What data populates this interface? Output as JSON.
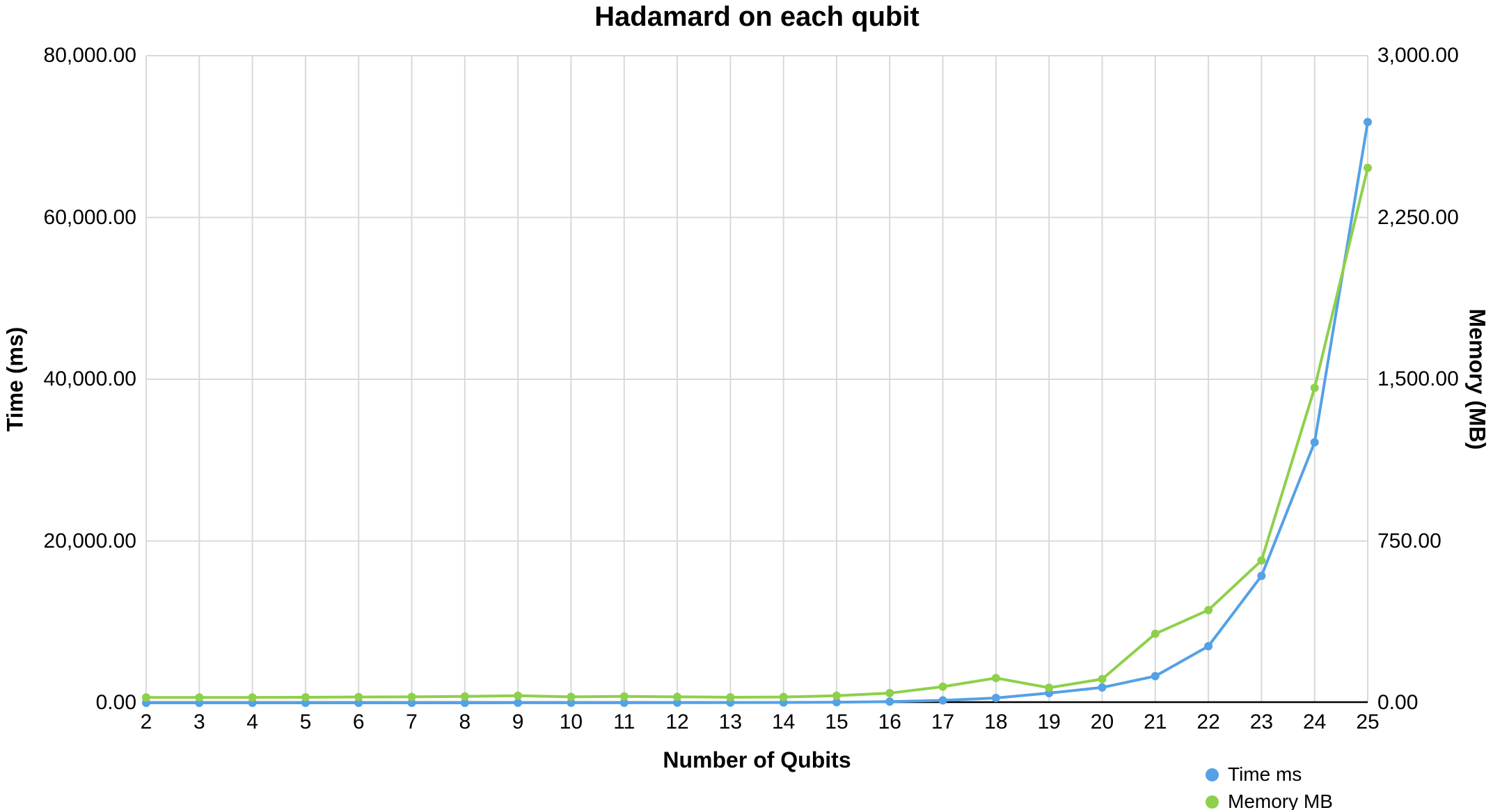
{
  "chart_data": {
    "type": "line",
    "title": "Hadamard on each qubit",
    "xlabel": "Number of Qubits",
    "x": [
      2,
      3,
      4,
      5,
      6,
      7,
      8,
      9,
      10,
      11,
      12,
      13,
      14,
      15,
      16,
      17,
      18,
      19,
      20,
      21,
      22,
      23,
      24,
      25
    ],
    "series": [
      {
        "name": "Time ms",
        "axis": "left",
        "color": "#54a1e6",
        "values": [
          1,
          1,
          1,
          2,
          2,
          3,
          4,
          6,
          8,
          12,
          18,
          30,
          45,
          80,
          150,
          300,
          600,
          1200,
          1900,
          3300,
          7000,
          15700,
          32200,
          71800
        ]
      },
      {
        "name": "Memory MB",
        "axis": "right",
        "color": "#8ed04b",
        "values": [
          25,
          25,
          25,
          26,
          27,
          28,
          30,
          33,
          28,
          30,
          28,
          26,
          27,
          33,
          45,
          75,
          115,
          70,
          110,
          320,
          430,
          660,
          1460,
          2480
        ]
      }
    ],
    "left_axis": {
      "label": "Time (ms)",
      "min": 0,
      "max": 80000,
      "tick_values": [
        0,
        20000,
        40000,
        60000,
        80000
      ],
      "tick_labels": [
        "0.00",
        "20,000.00",
        "40,000.00",
        "60,000.00",
        "80,000.00"
      ]
    },
    "right_axis": {
      "label": "Memory (MB)",
      "min": 0,
      "max": 3000,
      "tick_values": [
        0,
        750,
        1500,
        2250,
        3000
      ],
      "tick_labels": [
        "0.00",
        "750.00",
        "1,500.00",
        "2,250.00",
        "3,000.00"
      ]
    },
    "grid": true,
    "marker": "circle",
    "legend_position": "bottom-right"
  },
  "colors": {
    "background": "#ffffff",
    "grid": "#d9d9d9",
    "axis_line": "#000000",
    "text": "#000000"
  }
}
